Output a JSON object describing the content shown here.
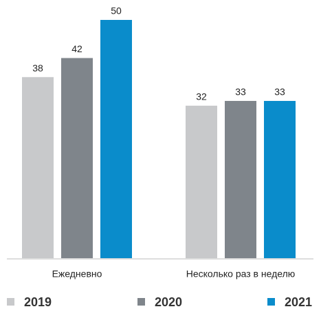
{
  "chart_data": {
    "type": "bar",
    "categories": [
      "Ежедневно",
      "Несколько раз в неделю"
    ],
    "series": [
      {
        "name": "2019",
        "color": "#c8c9cb",
        "values": [
          38,
          32
        ]
      },
      {
        "name": "2020",
        "color": "#7f858b",
        "values": [
          42,
          33
        ]
      },
      {
        "name": "2021",
        "color": "#0a8ccb",
        "values": [
          50,
          33
        ]
      }
    ]
  }
}
